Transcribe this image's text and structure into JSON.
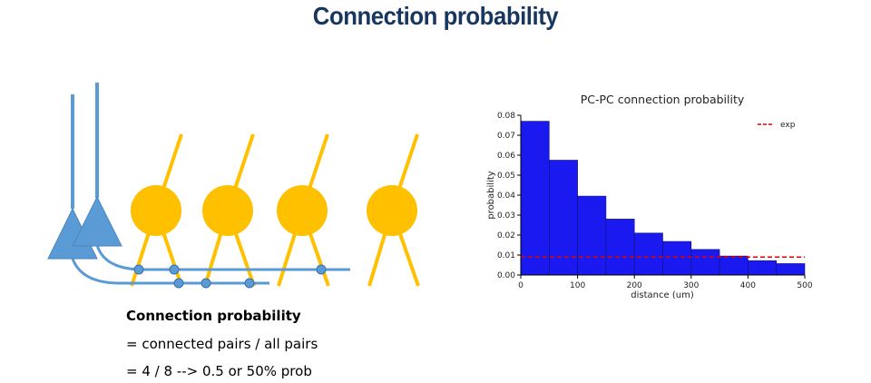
{
  "slide": {
    "title": "Connection  probability"
  },
  "explanation": {
    "heading": "Connection  probability",
    "line1": "= connected pairs / all pairs",
    "line2": "= 4 / 8 --> 0.5 or 50% prob"
  },
  "colors": {
    "title": "#17375e",
    "pc_cell": "#5b9bd5",
    "target_cell": "#ffc000",
    "bars": "#1a1af0",
    "exp_line": "#e00000"
  },
  "chart_data": {
    "type": "bar",
    "title": "PC-PC connection probability",
    "xlabel": "distance (um)",
    "ylabel": "probability",
    "xlim": [
      0,
      500
    ],
    "ylim": [
      0,
      0.08
    ],
    "xticks": [
      0,
      100,
      200,
      300,
      400,
      500
    ],
    "yticks": [
      0.0,
      0.01,
      0.02,
      0.03,
      0.04,
      0.05,
      0.06,
      0.07,
      0.08
    ],
    "bin_edges": [
      0,
      50,
      100,
      150,
      200,
      250,
      300,
      350,
      400,
      450,
      500
    ],
    "values": [
      0.077,
      0.0575,
      0.0395,
      0.028,
      0.021,
      0.0168,
      0.0128,
      0.0095,
      0.0072,
      0.0057
    ],
    "reference_line": {
      "name": "exp",
      "y": 0.009,
      "style": "dashed"
    },
    "legend": {
      "position": "top-right",
      "entries": [
        "exp"
      ]
    },
    "grid": false
  }
}
